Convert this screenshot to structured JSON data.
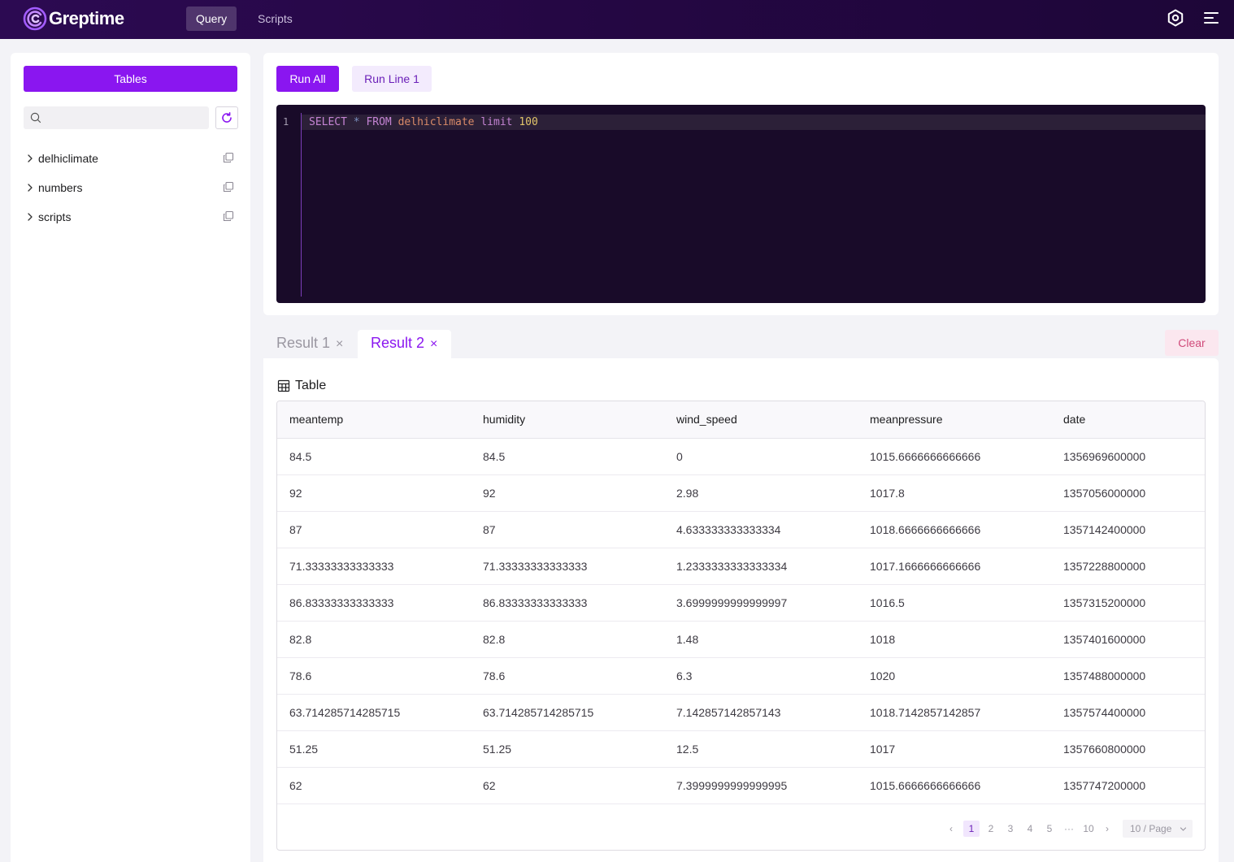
{
  "app": {
    "logo_text": "Greptime",
    "nav": {
      "query_label": "Query",
      "scripts_label": "Scripts",
      "active": "Query"
    }
  },
  "sidebar": {
    "tables_button": "Tables",
    "search_placeholder": "",
    "items": [
      {
        "label": "delhiclimate"
      },
      {
        "label": "numbers"
      },
      {
        "label": "scripts"
      }
    ]
  },
  "editor": {
    "run_all_label": "Run All",
    "run_line_label": "Run Line 1",
    "line_number": "1",
    "code_tokens": {
      "select": "SELECT",
      "star": "*",
      "from": "FROM",
      "table": "delhiclimate",
      "limit": "limit",
      "count": "100"
    }
  },
  "results": {
    "tabs": [
      {
        "label": "Result 1",
        "close": "×"
      },
      {
        "label": "Result 2",
        "close": "×"
      }
    ],
    "active_tab": "Result 2",
    "clear_label": "Clear",
    "view_title": "Table",
    "columns": [
      "meantemp",
      "humidity",
      "wind_speed",
      "meanpressure",
      "date"
    ],
    "rows": [
      [
        "84.5",
        "84.5",
        "0",
        "1015.6666666666666",
        "1356969600000"
      ],
      [
        "92",
        "92",
        "2.98",
        "1017.8",
        "1357056000000"
      ],
      [
        "87",
        "87",
        "4.633333333333334",
        "1018.6666666666666",
        "1357142400000"
      ],
      [
        "71.33333333333333",
        "71.33333333333333",
        "1.2333333333333334",
        "1017.1666666666666",
        "1357228800000"
      ],
      [
        "86.83333333333333",
        "86.83333333333333",
        "3.6999999999999997",
        "1016.5",
        "1357315200000"
      ],
      [
        "82.8",
        "82.8",
        "1.48",
        "1018",
        "1357401600000"
      ],
      [
        "78.6",
        "78.6",
        "6.3",
        "1020",
        "1357488000000"
      ],
      [
        "63.714285714285715",
        "63.714285714285715",
        "7.142857142857143",
        "1018.7142857142857",
        "1357574400000"
      ],
      [
        "51.25",
        "51.25",
        "12.5",
        "1017",
        "1357660800000"
      ],
      [
        "62",
        "62",
        "7.3999999999999995",
        "1015.6666666666666",
        "1357747200000"
      ]
    ],
    "pagination": {
      "prev": "‹",
      "pages": [
        "1",
        "2",
        "3",
        "4",
        "5"
      ],
      "ellipsis": "···",
      "last": "10",
      "next": "›",
      "current": "1",
      "page_size_label": "10 / Page"
    }
  },
  "colors": {
    "brand": "#8a16f0",
    "topbar": "#250744",
    "editor_bg": "#190b29",
    "clear_text": "#d04a7a"
  },
  "icons": [
    "greptime-logo-icon",
    "settings-icon",
    "menu-icon",
    "search-icon",
    "refresh-icon",
    "chevron-right-icon",
    "copy-icon",
    "table-icon",
    "close-icon",
    "chevron-down-icon"
  ]
}
